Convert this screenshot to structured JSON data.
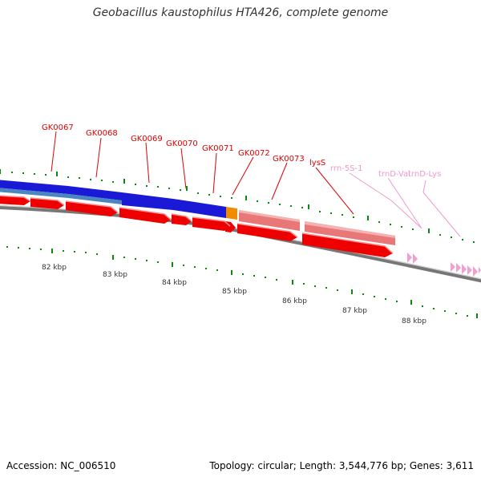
{
  "title": "Geobacillus kaustophilus HTA426, complete genome",
  "footer": {
    "accession": "Accession: NC_006510",
    "stats": "Topology: circular; Length: 3,544,776 bp; Genes: 3,611"
  },
  "colors": {
    "forward_cds": "#ee0000",
    "rrna": "#e87878",
    "trna": "#f0a0d0",
    "cog_blue": "#1a1ad6",
    "cog_steel": "#4a86c0",
    "cog_orange": "#f08c00",
    "tick": "#0a8a0a",
    "backbone": "#777777",
    "gene_label": "#dd0000",
    "rna_label": "#ee99cc"
  },
  "gene_labels": [
    {
      "text": "GK0067",
      "kind": "gene"
    },
    {
      "text": "GK0068",
      "kind": "gene"
    },
    {
      "text": "GK0069",
      "kind": "gene"
    },
    {
      "text": "GK0070",
      "kind": "gene"
    },
    {
      "text": "GK0071",
      "kind": "gene"
    },
    {
      "text": "GK0072",
      "kind": "gene"
    },
    {
      "text": "GK0073",
      "kind": "gene"
    },
    {
      "text": "lysS",
      "kind": "gene"
    },
    {
      "text": "rrn-5S-1",
      "kind": "rna"
    },
    {
      "text": "trnD-Val",
      "kind": "rna"
    },
    {
      "text": "trnD-Lys",
      "kind": "rna"
    }
  ],
  "kbp_labels": [
    "82 kbp",
    "83 kbp",
    "84 kbp",
    "85 kbp",
    "86 kbp",
    "87 kbp",
    "88 kbp"
  ]
}
